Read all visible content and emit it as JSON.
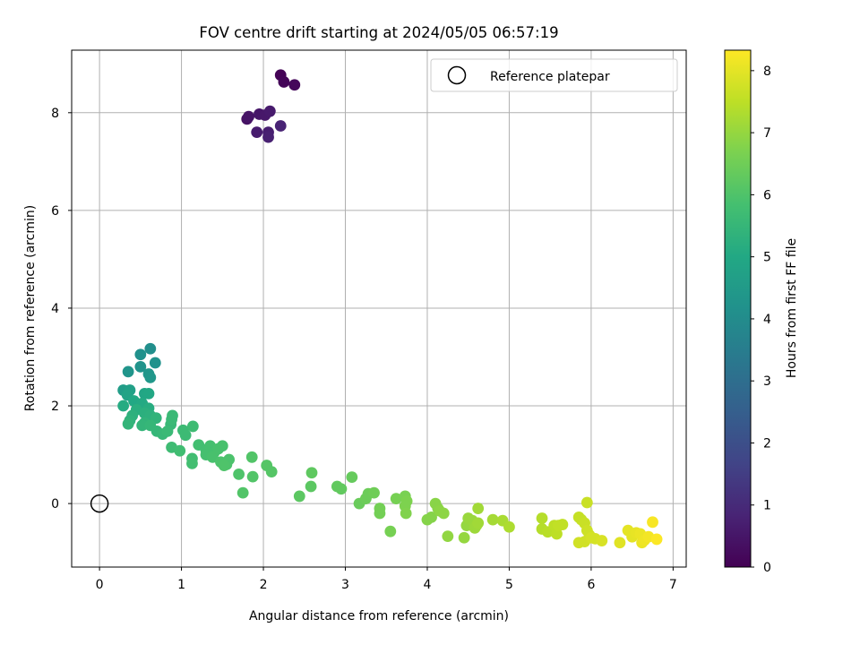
{
  "chart_data": {
    "type": "scatter",
    "title": "FOV centre drift starting at 2024/05/05 06:57:19",
    "xlabel": "Angular distance from reference (arcmin)",
    "ylabel": "Rotation from reference (arcmin)",
    "xlim": [
      -0.34,
      7.16
    ],
    "ylim": [
      -1.3,
      9.28
    ],
    "xticks": [
      0,
      1,
      2,
      3,
      4,
      5,
      6,
      7
    ],
    "yticks": [
      0,
      2,
      4,
      6,
      8
    ],
    "grid": true,
    "legend": {
      "position": "top-right",
      "entries": [
        "Reference platepar"
      ]
    },
    "reference_point": {
      "x": 0,
      "y": 0,
      "label": "Reference platepar"
    },
    "colorbar": {
      "label": "Hours from first FF file",
      "colormap": "viridis",
      "range": [
        0,
        8.33
      ],
      "ticks": [
        0,
        1,
        2,
        3,
        4,
        5,
        6,
        7,
        8
      ]
    },
    "points": [
      {
        "x": 2.21,
        "y": 8.77,
        "c": 0.05
      },
      {
        "x": 2.25,
        "y": 8.63,
        "c": 0.1
      },
      {
        "x": 2.38,
        "y": 8.57,
        "c": 0.15
      },
      {
        "x": 1.8,
        "y": 7.87,
        "c": 0.4
      },
      {
        "x": 1.82,
        "y": 7.92,
        "c": 0.45
      },
      {
        "x": 1.95,
        "y": 7.97,
        "c": 0.5
      },
      {
        "x": 2.02,
        "y": 7.95,
        "c": 0.55
      },
      {
        "x": 2.08,
        "y": 8.03,
        "c": 0.6
      },
      {
        "x": 1.92,
        "y": 7.6,
        "c": 0.65
      },
      {
        "x": 2.06,
        "y": 7.6,
        "c": 0.7
      },
      {
        "x": 2.06,
        "y": 7.5,
        "c": 0.75
      },
      {
        "x": 2.21,
        "y": 7.73,
        "c": 0.8
      },
      {
        "x": 0.62,
        "y": 3.17,
        "c": 4.1
      },
      {
        "x": 0.5,
        "y": 3.05,
        "c": 4.15
      },
      {
        "x": 0.68,
        "y": 2.88,
        "c": 4.2
      },
      {
        "x": 0.5,
        "y": 2.8,
        "c": 4.25
      },
      {
        "x": 0.35,
        "y": 2.7,
        "c": 4.3
      },
      {
        "x": 0.6,
        "y": 2.65,
        "c": 4.35
      },
      {
        "x": 0.62,
        "y": 2.58,
        "c": 4.4
      },
      {
        "x": 0.29,
        "y": 2.32,
        "c": 4.6
      },
      {
        "x": 0.37,
        "y": 2.32,
        "c": 4.7
      },
      {
        "x": 0.34,
        "y": 2.22,
        "c": 4.8
      },
      {
        "x": 0.55,
        "y": 2.25,
        "c": 4.9
      },
      {
        "x": 0.6,
        "y": 2.25,
        "c": 4.95
      },
      {
        "x": 0.42,
        "y": 2.1,
        "c": 5.0
      },
      {
        "x": 0.52,
        "y": 2.05,
        "c": 5.05
      },
      {
        "x": 0.29,
        "y": 2.0,
        "c": 5.1
      },
      {
        "x": 0.6,
        "y": 1.95,
        "c": 5.15
      },
      {
        "x": 0.45,
        "y": 1.92,
        "c": 5.2
      },
      {
        "x": 0.55,
        "y": 1.85,
        "c": 5.25
      },
      {
        "x": 0.4,
        "y": 1.8,
        "c": 5.3
      },
      {
        "x": 0.62,
        "y": 1.8,
        "c": 5.3
      },
      {
        "x": 0.37,
        "y": 1.7,
        "c": 5.35
      },
      {
        "x": 0.69,
        "y": 1.75,
        "c": 5.4
      },
      {
        "x": 0.55,
        "y": 1.65,
        "c": 5.4
      },
      {
        "x": 0.35,
        "y": 1.63,
        "c": 5.45
      },
      {
        "x": 0.52,
        "y": 1.6,
        "c": 5.45
      },
      {
        "x": 0.62,
        "y": 1.6,
        "c": 5.5
      },
      {
        "x": 0.7,
        "y": 1.48,
        "c": 5.5
      },
      {
        "x": 0.77,
        "y": 1.42,
        "c": 5.55
      },
      {
        "x": 0.87,
        "y": 1.62,
        "c": 5.55
      },
      {
        "x": 0.88,
        "y": 1.72,
        "c": 5.6
      },
      {
        "x": 0.89,
        "y": 1.8,
        "c": 5.6
      },
      {
        "x": 0.83,
        "y": 1.48,
        "c": 5.6
      },
      {
        "x": 1.02,
        "y": 1.5,
        "c": 5.65
      },
      {
        "x": 1.05,
        "y": 1.4,
        "c": 5.65
      },
      {
        "x": 1.14,
        "y": 1.58,
        "c": 5.7
      },
      {
        "x": 0.88,
        "y": 1.15,
        "c": 5.7
      },
      {
        "x": 0.98,
        "y": 1.08,
        "c": 5.75
      },
      {
        "x": 1.13,
        "y": 0.92,
        "c": 5.75
      },
      {
        "x": 1.13,
        "y": 0.82,
        "c": 5.8
      },
      {
        "x": 1.21,
        "y": 1.2,
        "c": 5.8
      },
      {
        "x": 1.3,
        "y": 1.1,
        "c": 5.8
      },
      {
        "x": 1.35,
        "y": 1.18,
        "c": 5.85
      },
      {
        "x": 1.3,
        "y": 1.0,
        "c": 5.85
      },
      {
        "x": 1.4,
        "y": 1.05,
        "c": 5.85
      },
      {
        "x": 1.38,
        "y": 0.95,
        "c": 5.9
      },
      {
        "x": 1.45,
        "y": 1.12,
        "c": 5.9
      },
      {
        "x": 1.5,
        "y": 1.18,
        "c": 5.9
      },
      {
        "x": 1.48,
        "y": 0.85,
        "c": 5.95
      },
      {
        "x": 1.55,
        "y": 0.8,
        "c": 5.95
      },
      {
        "x": 1.58,
        "y": 0.9,
        "c": 5.95
      },
      {
        "x": 1.52,
        "y": 0.78,
        "c": 6.0
      },
      {
        "x": 1.7,
        "y": 0.6,
        "c": 6.0
      },
      {
        "x": 1.75,
        "y": 0.22,
        "c": 6.05
      },
      {
        "x": 1.86,
        "y": 0.95,
        "c": 6.05
      },
      {
        "x": 1.87,
        "y": 0.55,
        "c": 6.05
      },
      {
        "x": 2.04,
        "y": 0.78,
        "c": 6.1
      },
      {
        "x": 2.1,
        "y": 0.65,
        "c": 6.1
      },
      {
        "x": 2.44,
        "y": 0.15,
        "c": 6.2
      },
      {
        "x": 2.58,
        "y": 0.35,
        "c": 6.2
      },
      {
        "x": 2.59,
        "y": 0.63,
        "c": 6.25
      },
      {
        "x": 2.9,
        "y": 0.35,
        "c": 6.3
      },
      {
        "x": 2.95,
        "y": 0.3,
        "c": 6.3
      },
      {
        "x": 3.08,
        "y": 0.54,
        "c": 6.35
      },
      {
        "x": 3.17,
        "y": 0.0,
        "c": 6.4
      },
      {
        "x": 3.25,
        "y": 0.1,
        "c": 6.45
      },
      {
        "x": 3.28,
        "y": 0.2,
        "c": 6.45
      },
      {
        "x": 3.35,
        "y": 0.22,
        "c": 6.5
      },
      {
        "x": 3.42,
        "y": -0.1,
        "c": 6.55
      },
      {
        "x": 3.42,
        "y": -0.2,
        "c": 6.55
      },
      {
        "x": 3.55,
        "y": -0.57,
        "c": 6.6
      },
      {
        "x": 3.62,
        "y": 0.1,
        "c": 6.6
      },
      {
        "x": 3.73,
        "y": 0.15,
        "c": 6.65
      },
      {
        "x": 3.75,
        "y": 0.05,
        "c": 6.7
      },
      {
        "x": 3.73,
        "y": -0.05,
        "c": 6.7
      },
      {
        "x": 3.74,
        "y": -0.2,
        "c": 6.75
      },
      {
        "x": 4.0,
        "y": -0.33,
        "c": 6.8
      },
      {
        "x": 4.05,
        "y": -0.28,
        "c": 6.8
      },
      {
        "x": 4.1,
        "y": 0.0,
        "c": 6.85
      },
      {
        "x": 4.13,
        "y": -0.1,
        "c": 6.85
      },
      {
        "x": 4.15,
        "y": -0.15,
        "c": 6.9
      },
      {
        "x": 4.2,
        "y": -0.2,
        "c": 6.9
      },
      {
        "x": 4.25,
        "y": -0.67,
        "c": 6.95
      },
      {
        "x": 4.45,
        "y": -0.7,
        "c": 7.0
      },
      {
        "x": 4.48,
        "y": -0.45,
        "c": 7.0
      },
      {
        "x": 4.5,
        "y": -0.3,
        "c": 7.05
      },
      {
        "x": 4.55,
        "y": -0.35,
        "c": 7.05
      },
      {
        "x": 4.58,
        "y": -0.5,
        "c": 7.1
      },
      {
        "x": 4.6,
        "y": -0.45,
        "c": 7.1
      },
      {
        "x": 4.62,
        "y": -0.1,
        "c": 7.15
      },
      {
        "x": 4.62,
        "y": -0.4,
        "c": 7.15
      },
      {
        "x": 4.8,
        "y": -0.33,
        "c": 7.2
      },
      {
        "x": 4.92,
        "y": -0.35,
        "c": 7.25
      },
      {
        "x": 5.0,
        "y": -0.48,
        "c": 7.3
      },
      {
        "x": 5.4,
        "y": -0.3,
        "c": 7.4
      },
      {
        "x": 5.4,
        "y": -0.52,
        "c": 7.4
      },
      {
        "x": 5.47,
        "y": -0.58,
        "c": 7.45
      },
      {
        "x": 5.55,
        "y": -0.45,
        "c": 7.5
      },
      {
        "x": 5.58,
        "y": -0.62,
        "c": 7.5
      },
      {
        "x": 5.6,
        "y": -0.45,
        "c": 7.55
      },
      {
        "x": 5.65,
        "y": -0.43,
        "c": 7.55
      },
      {
        "x": 5.85,
        "y": -0.28,
        "c": 7.6
      },
      {
        "x": 5.88,
        "y": -0.33,
        "c": 7.6
      },
      {
        "x": 5.92,
        "y": -0.4,
        "c": 7.65
      },
      {
        "x": 5.95,
        "y": 0.02,
        "c": 7.65
      },
      {
        "x": 5.95,
        "y": -0.55,
        "c": 7.7
      },
      {
        "x": 5.98,
        "y": -0.65,
        "c": 7.7
      },
      {
        "x": 5.85,
        "y": -0.8,
        "c": 7.75
      },
      {
        "x": 5.92,
        "y": -0.78,
        "c": 7.75
      },
      {
        "x": 6.0,
        "y": -0.7,
        "c": 7.8
      },
      {
        "x": 6.05,
        "y": -0.72,
        "c": 7.8
      },
      {
        "x": 6.13,
        "y": -0.76,
        "c": 7.85
      },
      {
        "x": 6.35,
        "y": -0.8,
        "c": 7.95
      },
      {
        "x": 6.45,
        "y": -0.55,
        "c": 8.0
      },
      {
        "x": 6.5,
        "y": -0.68,
        "c": 8.0
      },
      {
        "x": 6.55,
        "y": -0.6,
        "c": 8.05
      },
      {
        "x": 6.6,
        "y": -0.62,
        "c": 8.1
      },
      {
        "x": 6.62,
        "y": -0.8,
        "c": 8.1
      },
      {
        "x": 6.65,
        "y": -0.75,
        "c": 8.15
      },
      {
        "x": 6.7,
        "y": -0.68,
        "c": 8.2
      },
      {
        "x": 6.75,
        "y": -0.38,
        "c": 8.25
      },
      {
        "x": 6.8,
        "y": -0.73,
        "c": 8.3
      }
    ]
  }
}
